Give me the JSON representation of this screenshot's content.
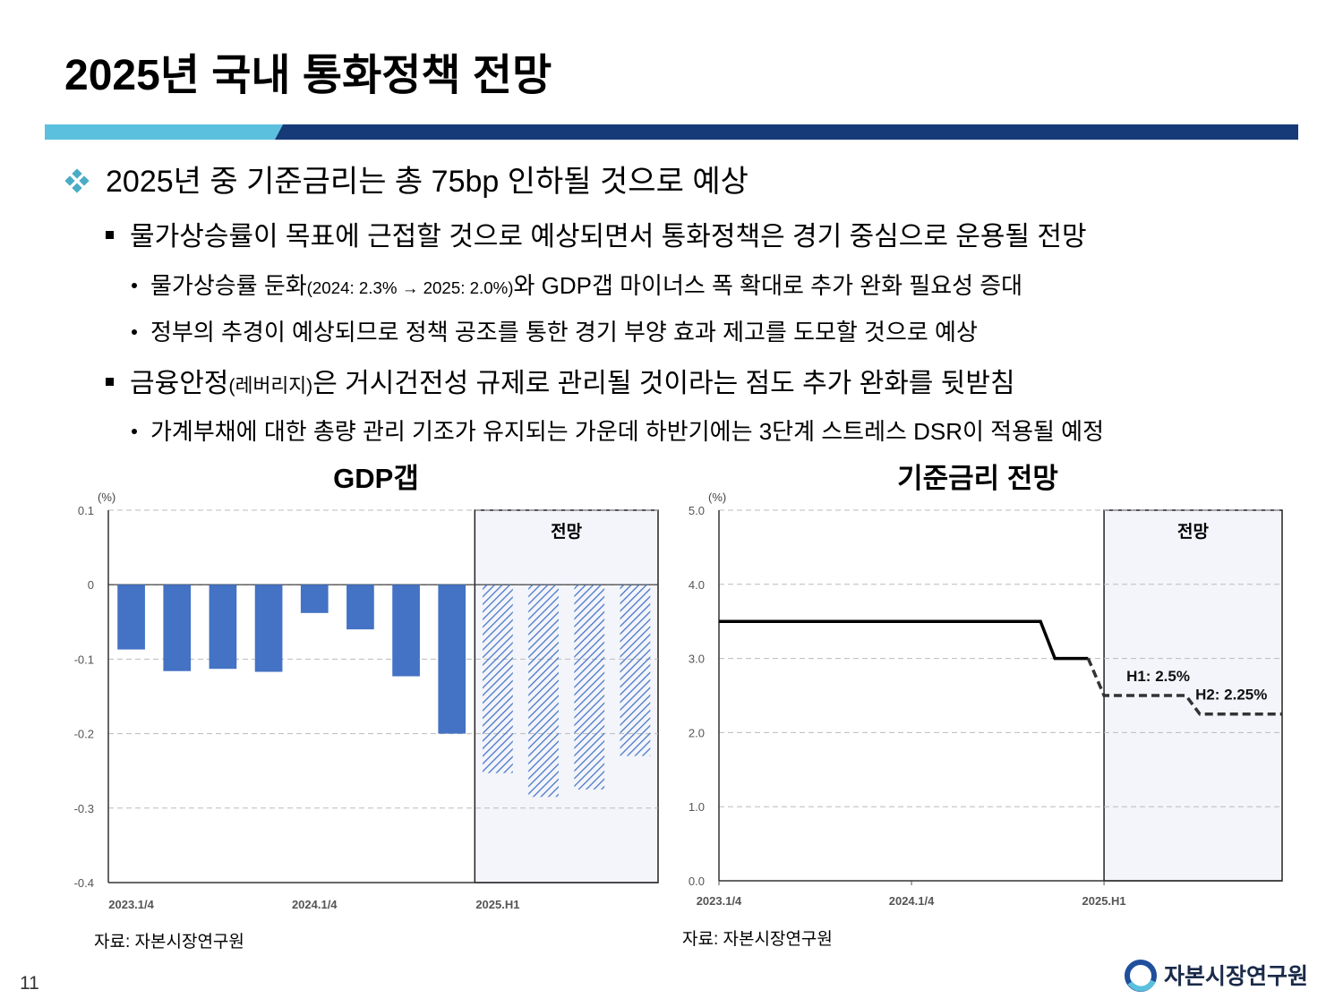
{
  "header": {
    "title": "2025년 국내 통화정책 전망"
  },
  "bullets": [
    {
      "level": 1,
      "text": [
        "2025년 중 기준금리는 총 75bp 인하될 것으로 예상"
      ]
    },
    {
      "level": 2,
      "text": [
        "물가상승률이 목표에 근접할 것으로 예상되면서 통화정책은 경기 중심으로 운용될 전망"
      ]
    },
    {
      "level": 3,
      "text": [
        "물가상승률 둔화",
        "(2024: 2.3% → 2025: 2.0%)",
        "와 GDP갭 마이너스 폭 확대로 추가 완화 필요성 증대"
      ]
    },
    {
      "level": 3,
      "text": [
        "정부의 추경이 예상되므로 정책 공조를 통한 경기 부양 효과 제고를 도모할 것으로 예상"
      ]
    },
    {
      "level": 2,
      "text": [
        "금융안정",
        "(레버리지)",
        "은 거시건전성 규제로 관리될 것이라는 점도 추가 완화를 뒷받침"
      ]
    },
    {
      "level": 3,
      "text": [
        "가계부채에 대한 총량 관리 기조가 유지되는 가운데 하반기에는 3단계 스트레스 DSR이 적용될 예정"
      ]
    }
  ],
  "chart_data": [
    {
      "type": "bar",
      "title": "GDP갭",
      "y_label": "(%)",
      "categories": [
        "2023.1/4",
        null,
        null,
        null,
        "2024.1/4",
        null,
        null,
        null,
        "2025.H1",
        null,
        null,
        null
      ],
      "series": [
        {
          "color": "#4472c4",
          "values": [
            -0.087,
            -0.116,
            -0.113,
            -0.117,
            -0.038,
            -0.06,
            -0.123,
            -0.2,
            null,
            null,
            null,
            null
          ]
        },
        {
          "color": "#4472c4",
          "pattern": "hatched",
          "values": [
            null,
            null,
            null,
            null,
            null,
            null,
            null,
            null,
            -0.253,
            -0.285,
            -0.275,
            -0.23
          ]
        }
      ],
      "ylim": [
        -0.4,
        0.1
      ],
      "yticks": [
        0.1,
        0,
        -0.1,
        -0.2,
        -0.3,
        -0.4
      ],
      "grid": true,
      "forecast": {
        "label": "전망"
      },
      "source": "자료: 자본시장연구원"
    },
    {
      "type": "line",
      "title": "기준금리 전망",
      "y_label": "(%)",
      "xlim": [
        0,
        11.7
      ],
      "xticks": [
        {
          "value": 0,
          "label": "2023.1/4"
        },
        {
          "value": 4,
          "label": "2024.1/4"
        },
        {
          "value": 8,
          "label": "2025.H1"
        }
      ],
      "ylim": [
        0,
        5
      ],
      "yticks": [
        {
          "value": 0,
          "label": "0.0"
        },
        {
          "value": 1,
          "label": "1.0"
        },
        {
          "value": 2,
          "label": "2.0"
        },
        {
          "value": 3,
          "label": "3.0"
        },
        {
          "value": 4,
          "label": "4.0"
        },
        {
          "value": 5,
          "label": "5.0"
        }
      ],
      "grid": true,
      "forecast": {
        "label": "전망",
        "x": 8
      },
      "series": [
        {
          "color": "#000000",
          "x": [
            0,
            6.68,
            6.98,
            7.67
          ],
          "values": [
            3.5,
            3.5,
            3,
            3
          ]
        },
        {
          "color": "#333333",
          "dash": true,
          "x": [
            7.67,
            8,
            9.7,
            9.99,
            11.7
          ],
          "values": [
            3,
            2.5,
            2.5,
            2.25,
            2.25
          ],
          "value_labels": [
            null,
            "H1: 2.5%",
            null,
            "H2: 2.25%",
            null
          ]
        }
      ],
      "source": "자료: 자본시장연구원"
    }
  ],
  "page_number": "11",
  "logo": "자본시장연구원"
}
